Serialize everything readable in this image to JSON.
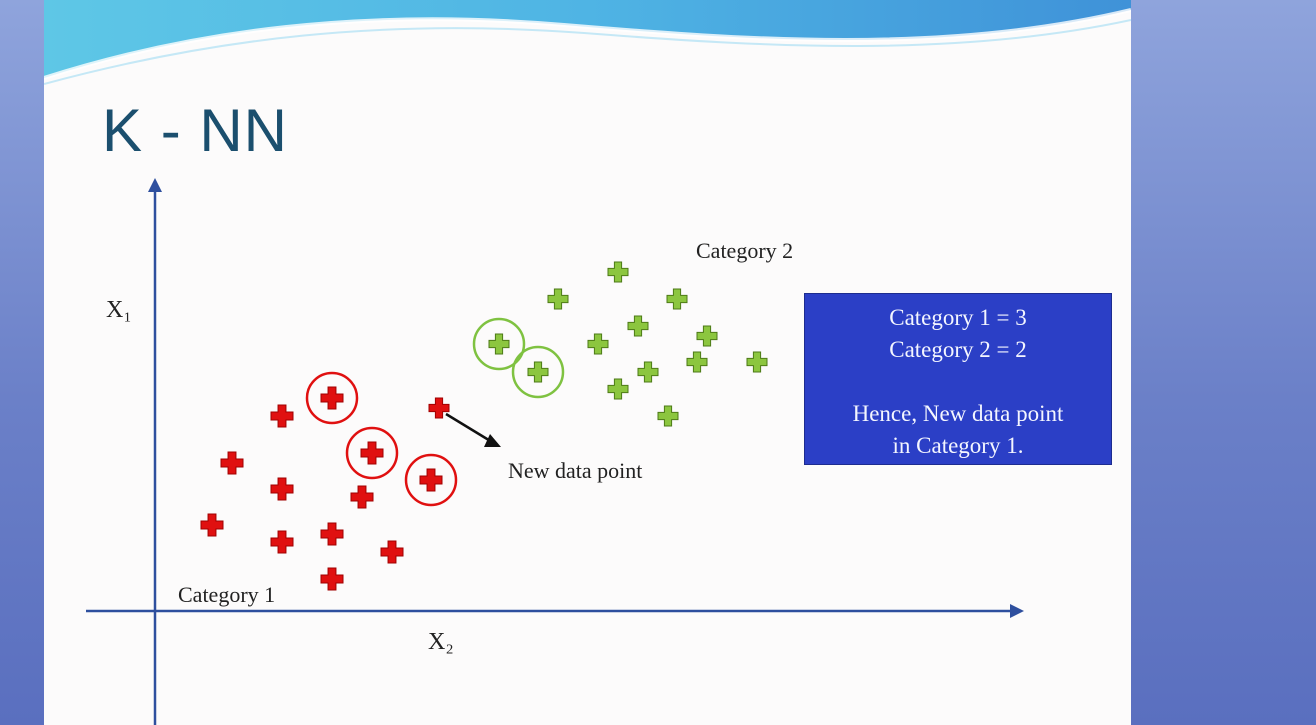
{
  "slide": {
    "title": "K - NN"
  },
  "axes": {
    "y_label": "X₁",
    "x_label": "X₂"
  },
  "labels": {
    "category1": "Category 1",
    "category2": "Category 2",
    "new_point": "New data point"
  },
  "info_box": {
    "line1": "Category 1 = 3",
    "line2": "Category 2 = 2",
    "line3": "Hence, New data point",
    "line4": "in Category 1."
  },
  "colors": {
    "category1": "#e01010",
    "category2": "#8cc63f",
    "axis": "#2e4f9e",
    "box": "#2b3fc6"
  },
  "points": {
    "category1": [
      {
        "id": "r1",
        "nearest": true
      },
      {
        "id": "r2",
        "nearest": true
      },
      {
        "id": "r3",
        "nearest": true
      },
      {
        "id": "r4"
      },
      {
        "id": "r5"
      },
      {
        "id": "r6"
      },
      {
        "id": "r7"
      },
      {
        "id": "r8"
      },
      {
        "id": "r9"
      },
      {
        "id": "r10"
      },
      {
        "id": "r11"
      },
      {
        "id": "r12"
      }
    ],
    "category2": [
      {
        "id": "g1",
        "nearest": true
      },
      {
        "id": "g2",
        "nearest": true
      },
      {
        "id": "g3"
      },
      {
        "id": "g4"
      },
      {
        "id": "g5"
      },
      {
        "id": "g6"
      },
      {
        "id": "g7"
      },
      {
        "id": "g8"
      },
      {
        "id": "g9"
      },
      {
        "id": "g10"
      },
      {
        "id": "g11"
      },
      {
        "id": "g12"
      },
      {
        "id": "g13"
      }
    ]
  }
}
